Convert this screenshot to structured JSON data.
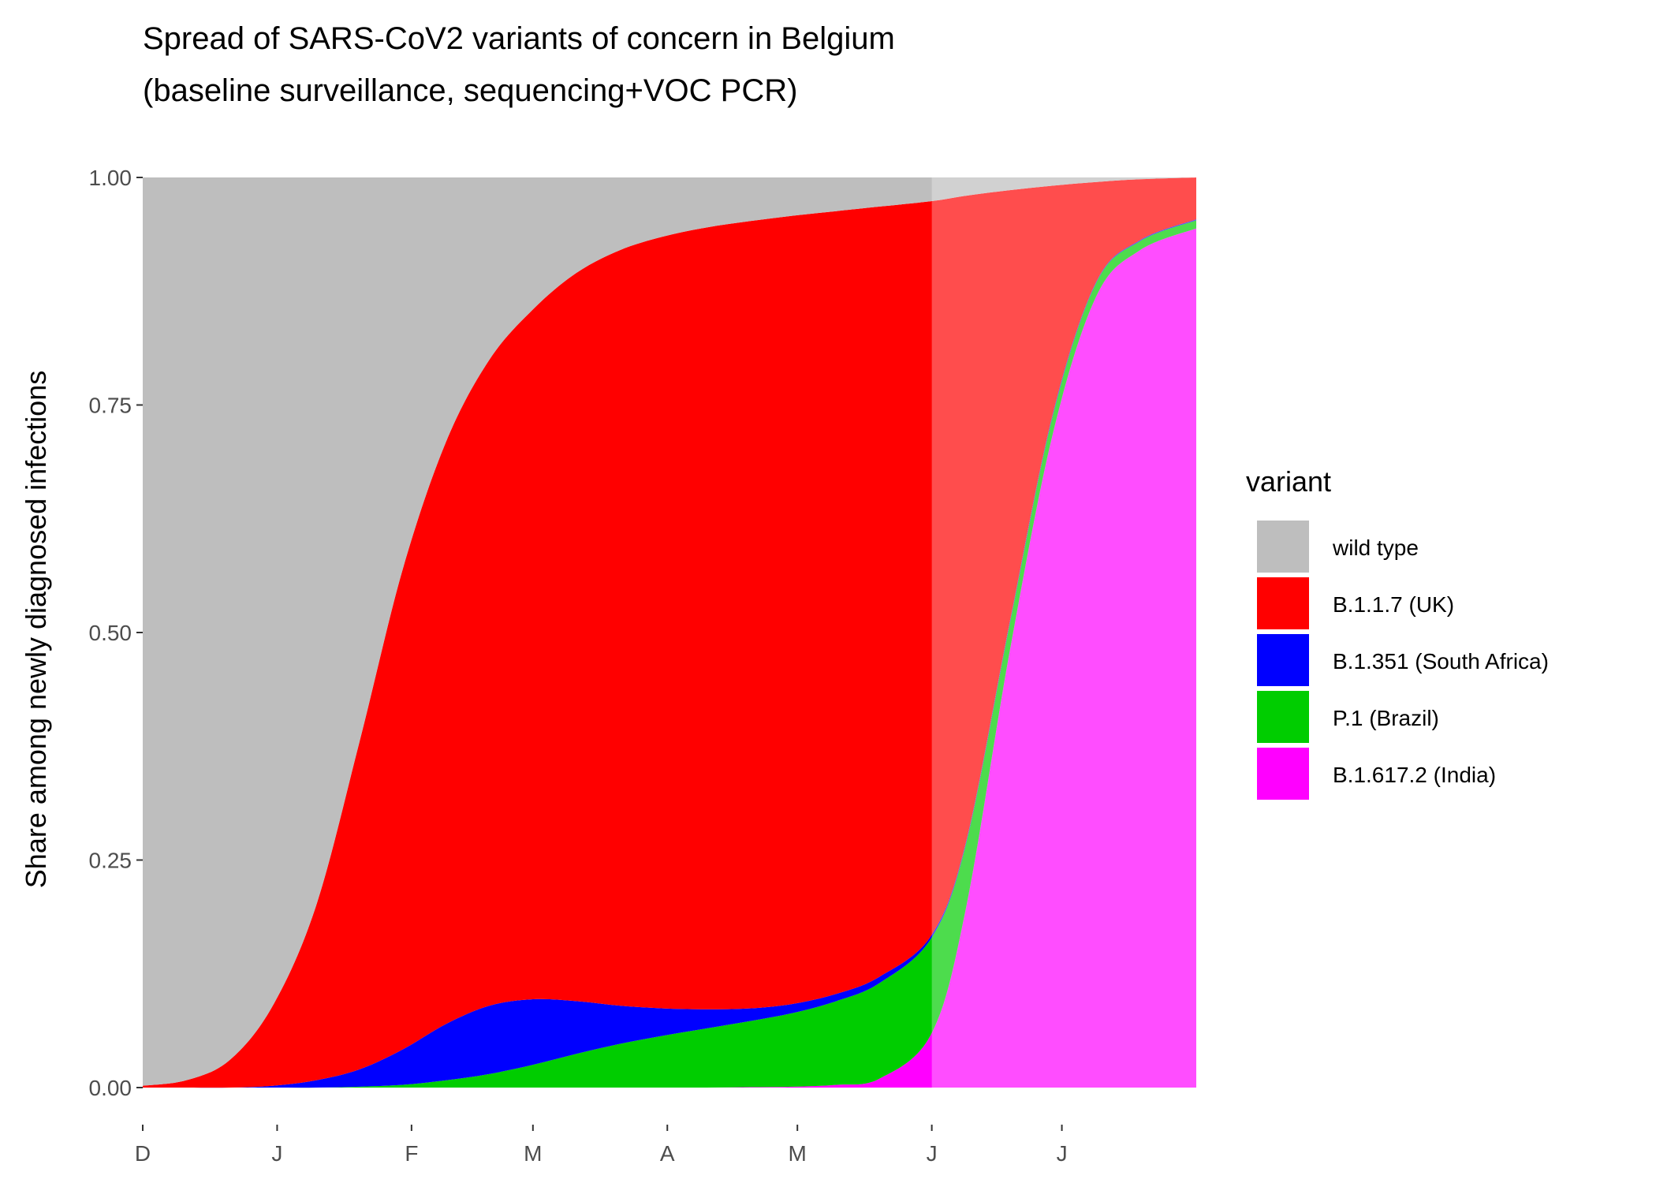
{
  "chart_data": {
    "type": "area",
    "stacked": true,
    "normalized": true,
    "title": "Spread of SARS-CoV2 variants of concern in Belgium",
    "subtitle": "(baseline surveillance, sequencing+VOC PCR)",
    "xlabel": "",
    "ylabel": "Share among newly diagnosed infections",
    "ylim": [
      0,
      1
    ],
    "y_ticks": [
      "0.00",
      "0.25",
      "0.50",
      "0.75",
      "1.00"
    ],
    "x_ticks": [
      "D",
      "J",
      "F",
      "M",
      "A",
      "M",
      "J",
      "J"
    ],
    "x_tick_positions": [
      0,
      31,
      62,
      90,
      121,
      151,
      182,
      212
    ],
    "xlim": [
      0,
      243
    ],
    "data_end": 182,
    "projection_start": 182,
    "grid": false,
    "legend_title": "variant",
    "legend_position": "right",
    "series": [
      {
        "name": "wild type",
        "color": "#BEBEBE"
      },
      {
        "name": "B.1.1.7 (UK)",
        "color": "#FF0000"
      },
      {
        "name": "B.1.351 (South Africa)",
        "color": "#0000FF"
      },
      {
        "name": "P.1 (Brazil)",
        "color": "#00CD00"
      },
      {
        "name": "B.1.617.2 (India)",
        "color": "#FF00FF"
      }
    ],
    "x": [
      0,
      10,
      20,
      30,
      40,
      50,
      60,
      70,
      80,
      90,
      100,
      110,
      120,
      130,
      140,
      150,
      160,
      170,
      182,
      190,
      200,
      210,
      220,
      230,
      243
    ],
    "cumulative_boundaries": {
      "B.1.617.2 (India)": [
        0,
        0,
        0,
        0,
        0,
        0,
        0,
        0,
        0,
        0,
        0,
        0,
        0,
        0,
        0.0005,
        0.001,
        0.003,
        0.01,
        0.06,
        0.2,
        0.48,
        0.72,
        0.87,
        0.92,
        0.944
      ],
      "P.1 (Brazil)": [
        0,
        0,
        0,
        0,
        0,
        0.001,
        0.003,
        0.008,
        0.015,
        0.025,
        0.037,
        0.048,
        0.057,
        0.065,
        0.073,
        0.082,
        0.095,
        0.115,
        0.165,
        0.27,
        0.51,
        0.74,
        0.885,
        0.93,
        0.953
      ],
      "B.1.351 (South Africa)": [
        0,
        0,
        0,
        0.002,
        0.008,
        0.02,
        0.042,
        0.07,
        0.09,
        0.097,
        0.095,
        0.09,
        0.087,
        0.086,
        0.087,
        0.092,
        0.103,
        0.122,
        0.168,
        0.272,
        0.512,
        0.742,
        0.886,
        0.931,
        0.954
      ],
      "B.1.1.7 (UK)": [
        0.002,
        0.008,
        0.03,
        0.09,
        0.2,
        0.38,
        0.57,
        0.71,
        0.8,
        0.855,
        0.895,
        0.92,
        0.935,
        0.945,
        0.952,
        0.958,
        0.963,
        0.968,
        0.974,
        0.98,
        0.986,
        0.991,
        0.995,
        0.998,
        1.0
      ],
      "wild type": [
        1,
        1,
        1,
        1,
        1,
        1,
        1,
        1,
        1,
        1,
        1,
        1,
        1,
        1,
        1,
        1,
        1,
        1,
        1,
        1,
        1,
        1,
        1,
        1,
        1
      ]
    }
  }
}
